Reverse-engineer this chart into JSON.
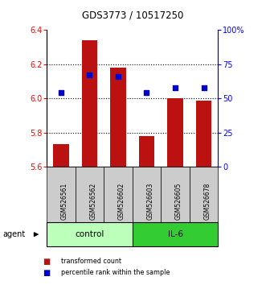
{
  "title": "GDS3773 / 10517250",
  "samples": [
    "GSM526561",
    "GSM526562",
    "GSM526602",
    "GSM526603",
    "GSM526605",
    "GSM526678"
  ],
  "transformed_counts": [
    5.73,
    6.34,
    6.18,
    5.78,
    6.0,
    5.985
  ],
  "percentile_ranks": [
    54,
    67,
    66,
    54,
    58,
    58
  ],
  "ylim_left": [
    5.6,
    6.4
  ],
  "ylim_right": [
    0,
    100
  ],
  "yticks_left": [
    5.6,
    5.8,
    6.0,
    6.2,
    6.4
  ],
  "yticks_right": [
    0,
    25,
    50,
    75,
    100
  ],
  "ytick_labels_right": [
    "0",
    "25",
    "50",
    "75",
    "100%"
  ],
  "bar_color": "#bb1111",
  "dot_color": "#0000cc",
  "bar_bottom": 5.6,
  "groups": [
    {
      "label": "control",
      "indices": [
        0,
        1,
        2
      ],
      "color": "#bbffbb"
    },
    {
      "label": "IL-6",
      "indices": [
        3,
        4,
        5
      ],
      "color": "#33cc33"
    }
  ],
  "agent_label": "agent",
  "legend": [
    {
      "label": "transformed count",
      "color": "#bb1111"
    },
    {
      "label": "percentile rank within the sample",
      "color": "#0000cc"
    }
  ],
  "figsize": [
    3.31,
    3.54
  ],
  "dpi": 100
}
